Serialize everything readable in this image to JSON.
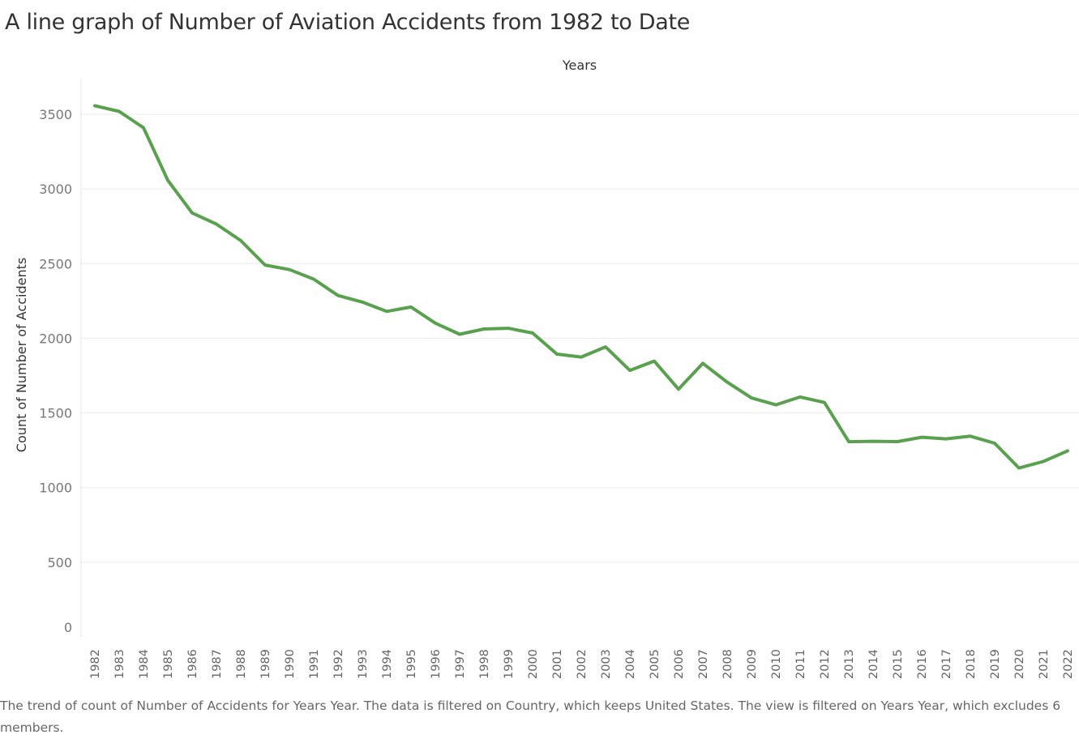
{
  "title": "A line graph of Number of Aviation Accidents from 1982 to Date",
  "caption": "The trend of count of Number of Accidents for Years Year. The data is filtered on Country, which keeps United States. The view is filtered on Years Year, which excludes 6 members.",
  "colors": {
    "line": "#59a14f",
    "grid": "#ebebeb",
    "text": "#333333"
  },
  "chart_data": {
    "type": "line",
    "title": "A line graph of Number of Aviation Accidents from 1982 to Date",
    "xlabel": "Years",
    "ylabel": "Count of Number of Accidents",
    "ylim": [
      0,
      3700
    ],
    "yticks": [
      0,
      500,
      1000,
      1500,
      2000,
      2500,
      3000,
      3500
    ],
    "grid": true,
    "legend": "none",
    "categories": [
      "1982",
      "1983",
      "1984",
      "1985",
      "1986",
      "1987",
      "1988",
      "1989",
      "1990",
      "1991",
      "1992",
      "1993",
      "1994",
      "1995",
      "1996",
      "1997",
      "1998",
      "1999",
      "2000",
      "2001",
      "2002",
      "2003",
      "2004",
      "2005",
      "2006",
      "2007",
      "2008",
      "2009",
      "2010",
      "2011",
      "2012",
      "2013",
      "2014",
      "2015",
      "2016",
      "2017",
      "2018",
      "2019",
      "2020",
      "2021",
      "2022"
    ],
    "values": [
      3557,
      3519,
      3410,
      3058,
      2839,
      2764,
      2654,
      2490,
      2460,
      2396,
      2286,
      2242,
      2180,
      2209,
      2101,
      2027,
      2062,
      2067,
      2035,
      1894,
      1874,
      1942,
      1785,
      1847,
      1659,
      1832,
      1706,
      1600,
      1554,
      1607,
      1570,
      1307,
      1310,
      1308,
      1337,
      1326,
      1344,
      1297,
      1131,
      1175,
      1246
    ]
  }
}
